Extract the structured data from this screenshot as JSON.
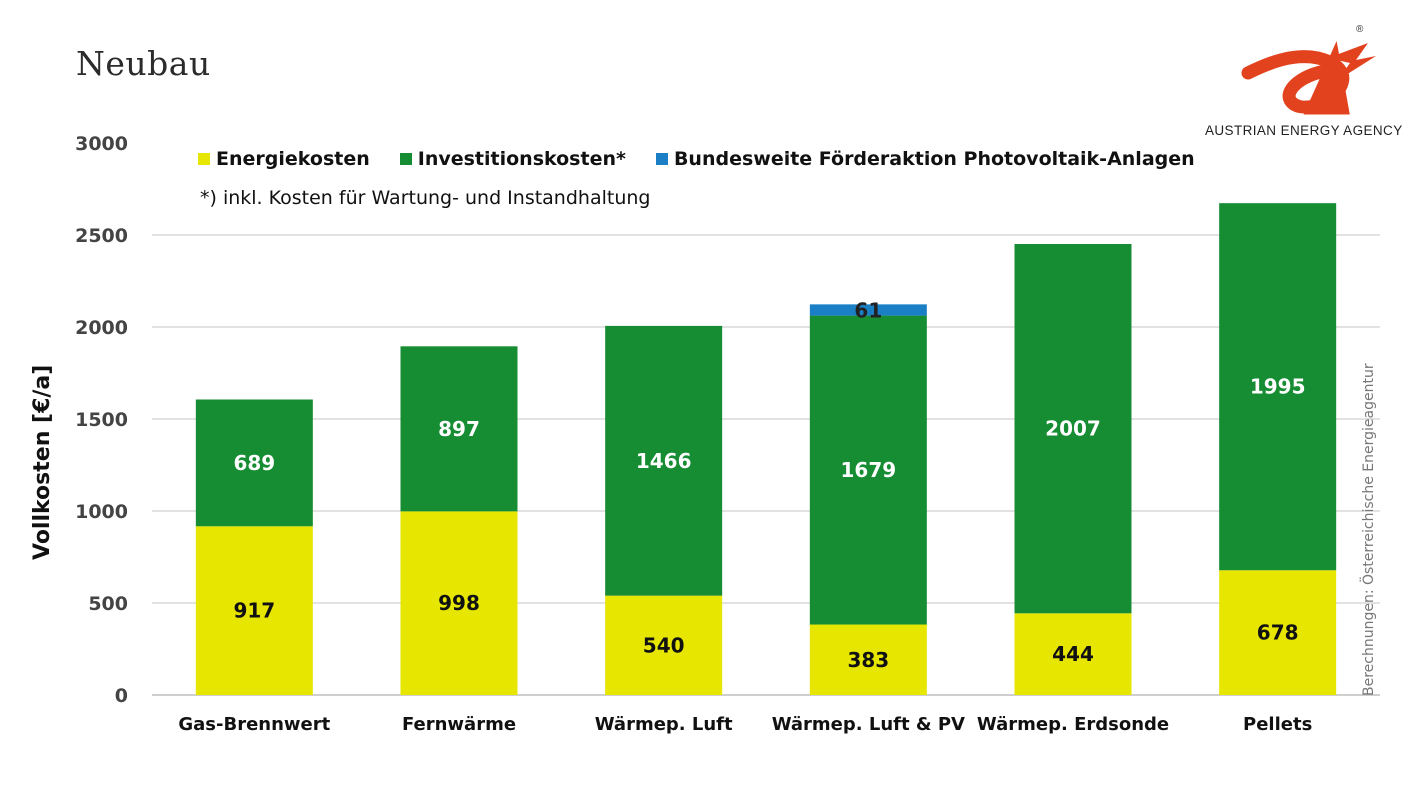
{
  "header": {
    "title": "Neubau",
    "brand": "AUSTRIAN ENERGY AGENCY",
    "registered_mark": "®",
    "source_note": "Berechnungen: Österreichische Energieagentur",
    "footnote": "*) inkl. Kosten für Wartung- und Instandhaltung"
  },
  "colors": {
    "energy": "#e6e600",
    "investment": "#168c33",
    "subsidy": "#1a7fc4",
    "logo": "#e2421e",
    "grid": "#d9d9d9"
  },
  "chart_data": {
    "type": "bar",
    "stacked": true,
    "title": "Neubau",
    "xlabel": "",
    "ylabel": "Vollkosten [€/a]",
    "ylim": [
      0,
      3000
    ],
    "yticks": [
      0,
      500,
      1000,
      1500,
      2000,
      2500,
      3000
    ],
    "grid": true,
    "legend_position": "top",
    "categories": [
      "Gas-Brennwert",
      "Fernwärme",
      "Wärmep. Luft",
      "Wärmep. Luft & PV",
      "Wärmep. Erdsonde",
      "Pellets"
    ],
    "series": [
      {
        "name": "Energiekosten",
        "values": [
          917,
          998,
          540,
          383,
          444,
          678
        ],
        "label_color": "#111111"
      },
      {
        "name": "Investitionskosten*",
        "values": [
          689,
          897,
          1466,
          1679,
          2007,
          1995
        ],
        "label_color": "#ffffff"
      },
      {
        "name": "Bundesweite Förderaktion Photovoltaik-Anlagen",
        "values": [
          null,
          null,
          null,
          61,
          null,
          null
        ],
        "label_color": "#222222"
      }
    ]
  }
}
